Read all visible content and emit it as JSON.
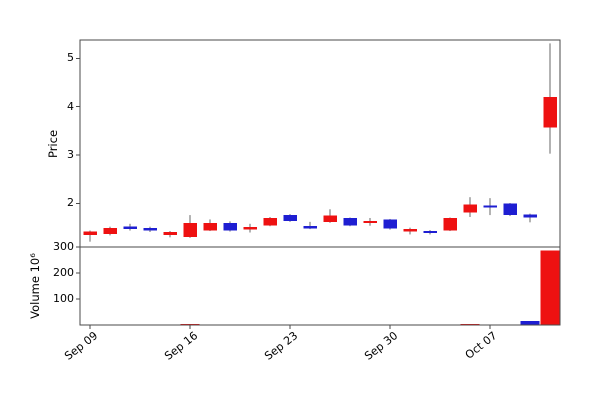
{
  "chart_data": {
    "type": "candlestick",
    "title": "",
    "price_axis_label": "Price",
    "volume_axis_label": "Volume  10⁶",
    "price_ticks": [
      2,
      3,
      4,
      5
    ],
    "volume_ticks": [
      100,
      200,
      300
    ],
    "price_ylim": [
      1.1,
      5.38
    ],
    "volume_ylim": [
      0,
      300
    ],
    "x_ticks": [
      {
        "index": 0,
        "label": "Sep 09"
      },
      {
        "index": 5,
        "label": "Sep 16"
      },
      {
        "index": 10,
        "label": "Sep 23"
      },
      {
        "index": 15,
        "label": "Sep 30"
      },
      {
        "index": 20,
        "label": "Oct 07"
      }
    ],
    "colors": {
      "up": "#ee1111",
      "down": "#1e1ed2",
      "wick": "#8a8a8a",
      "spine": "#4a4a4a",
      "text": "#000000"
    },
    "candles": [
      {
        "date": "Sep 09",
        "open": 1.35,
        "high": 1.44,
        "low": 1.21,
        "close": 1.42,
        "volume": 2
      },
      {
        "date": "Sep 10",
        "open": 1.37,
        "high": 1.52,
        "low": 1.34,
        "close": 1.49,
        "volume": 1.5
      },
      {
        "date": "Sep 11",
        "open": 1.52,
        "high": 1.58,
        "low": 1.44,
        "close": 1.48,
        "volume": 1
      },
      {
        "date": "Sep 12",
        "open": 1.49,
        "high": 1.52,
        "low": 1.41,
        "close": 1.45,
        "volume": 1
      },
      {
        "date": "Sep 13",
        "open": 1.35,
        "high": 1.43,
        "low": 1.3,
        "close": 1.41,
        "volume": 1
      },
      {
        "date": "Sep 16",
        "open": 1.31,
        "high": 1.76,
        "low": 1.29,
        "close": 1.59,
        "volume": 3
      },
      {
        "date": "Sep 17",
        "open": 1.45,
        "high": 1.67,
        "low": 1.43,
        "close": 1.59,
        "volume": 2
      },
      {
        "date": "Sep 18",
        "open": 1.59,
        "high": 1.63,
        "low": 1.42,
        "close": 1.45,
        "volume": 2
      },
      {
        "date": "Sep 19",
        "open": 1.47,
        "high": 1.58,
        "low": 1.4,
        "close": 1.51,
        "volume": 1
      },
      {
        "date": "Sep 20",
        "open": 1.55,
        "high": 1.72,
        "low": 1.53,
        "close": 1.69,
        "volume": 2
      },
      {
        "date": "Sep 23",
        "open": 1.76,
        "high": 1.78,
        "low": 1.62,
        "close": 1.64,
        "volume": 2
      },
      {
        "date": "Sep 24",
        "open": 1.53,
        "high": 1.62,
        "low": 1.47,
        "close": 1.49,
        "volume": 1
      },
      {
        "date": "Sep 25",
        "open": 1.62,
        "high": 1.88,
        "low": 1.6,
        "close": 1.75,
        "volume": 2
      },
      {
        "date": "Sep 26",
        "open": 1.69,
        "high": 1.71,
        "low": 1.53,
        "close": 1.55,
        "volume": 1
      },
      {
        "date": "Sep 27",
        "open": 1.6,
        "high": 1.7,
        "low": 1.54,
        "close": 1.63,
        "volume": 1
      },
      {
        "date": "Sep 30",
        "open": 1.66,
        "high": 1.68,
        "low": 1.46,
        "close": 1.49,
        "volume": 2
      },
      {
        "date": "Oct 01",
        "open": 1.43,
        "high": 1.5,
        "low": 1.36,
        "close": 1.47,
        "volume": 1
      },
      {
        "date": "Oct 02",
        "open": 1.43,
        "high": 1.45,
        "low": 1.36,
        "close": 1.4,
        "volume": 1
      },
      {
        "date": "Oct 03",
        "open": 1.45,
        "high": 1.71,
        "low": 1.43,
        "close": 1.69,
        "volume": 2
      },
      {
        "date": "Oct 04",
        "open": 1.82,
        "high": 2.13,
        "low": 1.72,
        "close": 1.97,
        "volume": 3
      },
      {
        "date": "Oct 07",
        "open": 1.95,
        "high": 2.11,
        "low": 1.76,
        "close": 1.92,
        "volume": 2
      },
      {
        "date": "Oct 08",
        "open": 1.99,
        "high": 2.01,
        "low": 1.74,
        "close": 1.77,
        "volume": 2
      },
      {
        "date": "Oct 09",
        "open": 1.77,
        "high": 1.79,
        "low": 1.61,
        "close": 1.72,
        "volume": 16
      },
      {
        "date": "Oct 10",
        "open": 3.58,
        "high": 5.31,
        "low": 3.03,
        "close": 4.2,
        "volume": 286
      }
    ]
  }
}
